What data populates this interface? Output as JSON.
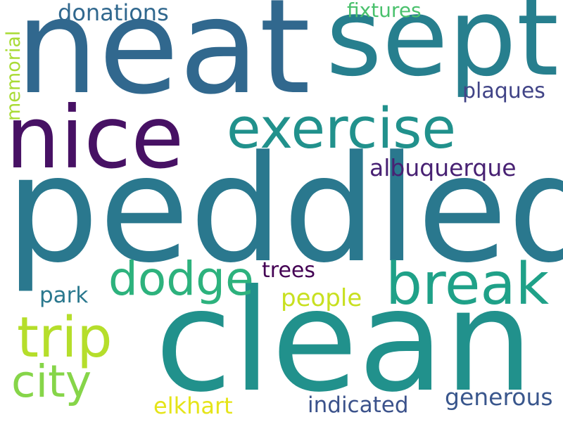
{
  "words": {
    "neat": {
      "text": "neat",
      "color": "#31688e"
    },
    "sept": {
      "text": "sept",
      "color": "#277f8e"
    },
    "nice": {
      "text": "nice",
      "color": "#471164"
    },
    "exercise": {
      "text": "exercise",
      "color": "#21918c"
    },
    "peddled": {
      "text": "peddled",
      "color": "#2a788e"
    },
    "clean": {
      "text": "clean",
      "color": "#21918c"
    },
    "break": {
      "text": "break",
      "color": "#1fa188"
    },
    "dodge": {
      "text": "dodge",
      "color": "#2db27d"
    },
    "trip": {
      "text": "trip",
      "color": "#b5de2b"
    },
    "city": {
      "text": "city",
      "color": "#86d549"
    },
    "albuquerque": {
      "text": "albuquerque",
      "color": "#482173"
    },
    "donations": {
      "text": "donations",
      "color": "#31688e"
    },
    "fixtures": {
      "text": "fixtures",
      "color": "#4ac16d"
    },
    "memorial": {
      "text": "memorial",
      "color": "#a8db34"
    },
    "plaques": {
      "text": "plaques",
      "color": "#414487"
    },
    "park": {
      "text": "park",
      "color": "#2a788e"
    },
    "trees": {
      "text": "trees",
      "color": "#440154"
    },
    "people": {
      "text": "people",
      "color": "#c8e020"
    },
    "generous": {
      "text": "generous",
      "color": "#39568c"
    },
    "indicated": {
      "text": "indicated",
      "color": "#3b528b"
    },
    "elkhart": {
      "text": "elkhart",
      "color": "#e5e419"
    }
  }
}
